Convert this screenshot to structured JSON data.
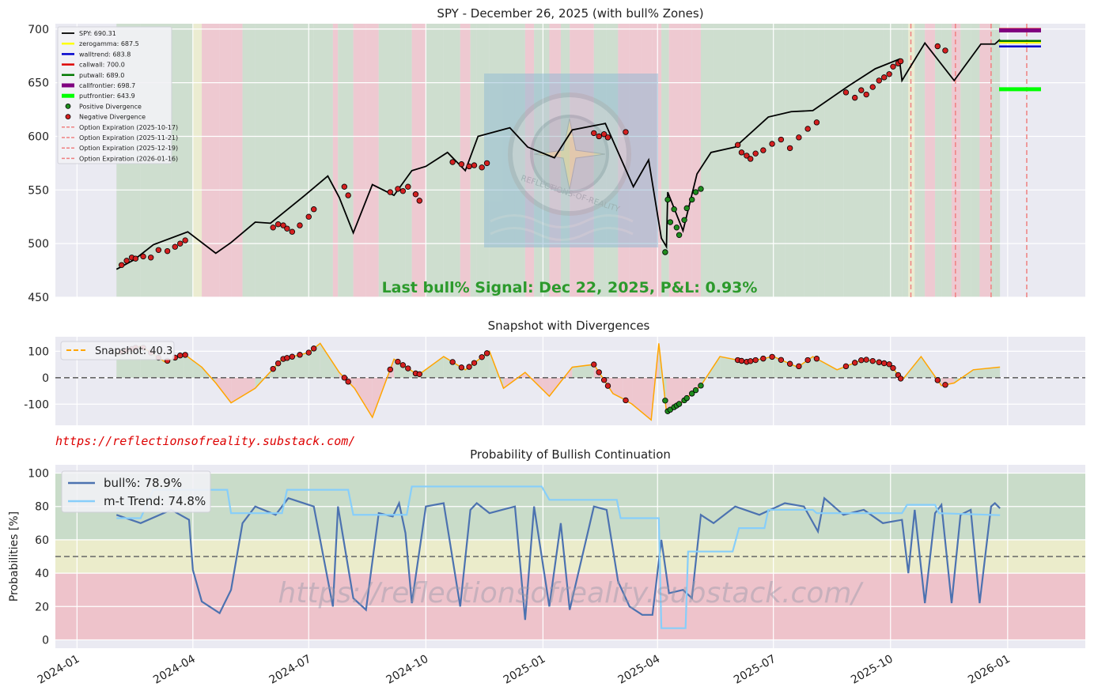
{
  "colors": {
    "axes_bg": "#eaeaf2",
    "grid": "#ffffff",
    "bull_zone": "#c9dcc9",
    "neutral_zone": "#ebeccb",
    "bear_zone": "#eec3cb",
    "spy_line": "#000000",
    "snapshot_line": "#ffa500",
    "bull_line": "#4c72b0",
    "trend_line": "#87cefa",
    "signal_text": "#2c9a2c",
    "url_text": "#dd0000",
    "expiry_line": "#f08080"
  },
  "chart_data": [
    {
      "type": "line",
      "title": "SPY - December 26, 2025 (with bull% Zones)",
      "ylim": [
        450,
        705
      ],
      "yticks": [
        450,
        500,
        550,
        600,
        650,
        700
      ],
      "xlim": [
        "2023-12-15",
        "2026-03-03"
      ],
      "series": [
        {
          "name": "SPY",
          "color": "#000000",
          "x": [
            "2024-02-01",
            "2024-02-15",
            "2024-03-01",
            "2024-03-28",
            "2024-04-19",
            "2024-05-01",
            "2024-05-20",
            "2024-06-01",
            "2024-06-28",
            "2024-07-16",
            "2024-07-25",
            "2024-08-05",
            "2024-08-20",
            "2024-09-06",
            "2024-09-20",
            "2024-10-01",
            "2024-10-18",
            "2024-11-01",
            "2024-11-11",
            "2024-12-06",
            "2024-12-20",
            "2025-01-10",
            "2025-01-24",
            "2025-02-19",
            "2025-03-13",
            "2025-03-25",
            "2025-04-04",
            "2025-04-08",
            "2025-04-09",
            "2025-04-21",
            "2025-05-02",
            "2025-05-13",
            "2025-06-01",
            "2025-06-27",
            "2025-07-15",
            "2025-08-01",
            "2025-08-29",
            "2025-09-19",
            "2025-10-08",
            "2025-10-10",
            "2025-10-28",
            "2025-11-20",
            "2025-12-11",
            "2025-12-22",
            "2025-12-26"
          ],
          "y": [
            476,
            485,
            499,
            511,
            491,
            501,
            520,
            519,
            545,
            563,
            543,
            510,
            555,
            545,
            568,
            572,
            585,
            568,
            600,
            608,
            590,
            580,
            606,
            612,
            553,
            578,
            505,
            497,
            548,
            512,
            565,
            585,
            590,
            618,
            623,
            624,
            647,
            663,
            672,
            652,
            687,
            652,
            686,
            686,
            690.3
          ]
        }
      ],
      "horizontal_levels": [
        {
          "name": "zerogamma",
          "value": 687.5,
          "color": "#ffff00"
        },
        {
          "name": "walltrend",
          "value": 683.8,
          "color": "#0000cc"
        },
        {
          "name": "callwall",
          "value": 700.0,
          "color": "#dd0000"
        },
        {
          "name": "putwall",
          "value": 689.0,
          "color": "#007700"
        },
        {
          "name": "callfrontier",
          "value": 698.7,
          "color": "#800080"
        },
        {
          "name": "putfrontier",
          "value": 643.9,
          "color": "#00ff00"
        }
      ],
      "option_expirations": [
        "2025-10-17",
        "2025-11-21",
        "2025-12-19",
        "2026-01-16"
      ],
      "negative_divergence": [
        [
          "2024-02-05",
          480
        ],
        [
          "2024-02-09",
          484
        ],
        [
          "2024-02-13",
          487
        ],
        [
          "2024-02-16",
          486
        ],
        [
          "2024-02-22",
          488
        ],
        [
          "2024-02-28",
          487
        ],
        [
          "2024-03-05",
          494
        ],
        [
          "2024-03-12",
          493
        ],
        [
          "2024-03-18",
          497
        ],
        [
          "2024-03-22",
          500
        ],
        [
          "2024-03-26",
          503
        ],
        [
          "2024-06-03",
          515
        ],
        [
          "2024-06-07",
          518
        ],
        [
          "2024-06-11",
          517
        ],
        [
          "2024-06-14",
          514
        ],
        [
          "2024-06-18",
          511
        ],
        [
          "2024-06-24",
          517
        ],
        [
          "2024-07-01",
          525
        ],
        [
          "2024-07-05",
          532
        ],
        [
          "2024-07-29",
          553
        ],
        [
          "2024-08-01",
          545
        ],
        [
          "2024-09-03",
          548
        ],
        [
          "2024-09-09",
          551
        ],
        [
          "2024-09-13",
          549
        ],
        [
          "2024-09-17",
          553
        ],
        [
          "2024-09-23",
          546
        ],
        [
          "2024-09-26",
          540
        ],
        [
          "2024-10-22",
          576
        ],
        [
          "2024-10-29",
          574
        ],
        [
          "2024-11-04",
          572
        ],
        [
          "2024-11-08",
          573
        ],
        [
          "2024-11-14",
          571
        ],
        [
          "2024-11-18",
          575
        ],
        [
          "2025-02-10",
          603
        ],
        [
          "2025-02-14",
          600
        ],
        [
          "2025-02-18",
          602
        ],
        [
          "2025-02-21",
          599
        ],
        [
          "2025-03-07",
          604
        ],
        [
          "2025-06-03",
          592
        ],
        [
          "2025-06-06",
          585
        ],
        [
          "2025-06-10",
          582
        ],
        [
          "2025-06-13",
          579
        ],
        [
          "2025-06-17",
          584
        ],
        [
          "2025-06-23",
          587
        ],
        [
          "2025-06-30",
          593
        ],
        [
          "2025-07-07",
          597
        ],
        [
          "2025-07-14",
          589
        ],
        [
          "2025-07-21",
          599
        ],
        [
          "2025-07-28",
          607
        ],
        [
          "2025-08-04",
          613
        ],
        [
          "2025-08-27",
          641
        ],
        [
          "2025-09-03",
          636
        ],
        [
          "2025-09-08",
          643
        ],
        [
          "2025-09-12",
          639
        ],
        [
          "2025-09-17",
          646
        ],
        [
          "2025-09-22",
          652
        ],
        [
          "2025-09-26",
          655
        ],
        [
          "2025-09-30",
          658
        ],
        [
          "2025-10-03",
          665
        ],
        [
          "2025-10-07",
          668
        ],
        [
          "2025-10-09",
          670
        ],
        [
          "2025-11-07",
          684
        ],
        [
          "2025-11-13",
          680
        ]
      ],
      "positive_divergence": [
        [
          "2025-04-07",
          492
        ],
        [
          "2025-04-09",
          541
        ],
        [
          "2025-04-11",
          520
        ],
        [
          "2025-04-14",
          532
        ],
        [
          "2025-04-16",
          515
        ],
        [
          "2025-04-18",
          508
        ],
        [
          "2025-04-22",
          522
        ],
        [
          "2025-04-24",
          533
        ],
        [
          "2025-04-28",
          541
        ],
        [
          "2025-05-01",
          548
        ],
        [
          "2025-05-05",
          551
        ]
      ],
      "annotation": "Last bull% Signal: Dec 22, 2025, P&L: 0.93%",
      "legend_labels": [
        "SPY:  690.31",
        "zerogamma: 687.5",
        "walltrend: 683.8",
        "callwall: 700.0",
        "putwall: 689.0",
        "callfrontier: 698.7",
        "putfrontier: 643.9",
        "Positive Divergence",
        "Negative Divergence",
        "Option Expiration (2025-10-17)",
        "Option Expiration (2025-11-21)",
        "Option Expiration (2025-12-19)",
        "Option Expiration (2026-01-16)"
      ],
      "legend_placement": "top-left",
      "watermark": "REFLECTIONS-OF-REALITY"
    },
    {
      "type": "area",
      "title": "Snapshot with Divergences",
      "ylim": [
        -180,
        155
      ],
      "yticks": [
        -100,
        0,
        100
      ],
      "series": [
        {
          "name": "Snapshot",
          "color": "#ffa500",
          "x": [
            "2024-02-01",
            "2024-02-20",
            "2024-03-10",
            "2024-03-25",
            "2024-04-08",
            "2024-04-19",
            "2024-05-01",
            "2024-05-20",
            "2024-06-10",
            "2024-07-01",
            "2024-07-10",
            "2024-07-25",
            "2024-08-06",
            "2024-08-20",
            "2024-09-06",
            "2024-09-25",
            "2024-10-15",
            "2024-11-01",
            "2024-11-20",
            "2024-12-01",
            "2024-12-18",
            "2025-01-06",
            "2025-01-24",
            "2025-02-10",
            "2025-02-25",
            "2025-03-05",
            "2025-03-12",
            "2025-03-27",
            "2025-04-02",
            "2025-04-08",
            "2025-04-21",
            "2025-05-05",
            "2025-05-20",
            "2025-06-10",
            "2025-07-01",
            "2025-07-20",
            "2025-08-01",
            "2025-08-20",
            "2025-09-10",
            "2025-10-01",
            "2025-10-10",
            "2025-10-25",
            "2025-11-10",
            "2025-11-20",
            "2025-12-05",
            "2025-12-26"
          ],
          "y": [
            90,
            120,
            60,
            90,
            40,
            -20,
            -95,
            -40,
            70,
            95,
            130,
            20,
            -40,
            -150,
            70,
            10,
            80,
            30,
            100,
            -40,
            20,
            -70,
            40,
            50,
            -60,
            -80,
            -100,
            -160,
            130,
            -130,
            -90,
            -30,
            80,
            60,
            80,
            40,
            80,
            30,
            70,
            50,
            -10,
            80,
            -30,
            -20,
            30,
            40.3
          ]
        }
      ],
      "divergences": "markers at snapshot extremes, red negative / green positive",
      "legend_labels": [
        "Snapshot: 40.3"
      ]
    },
    {
      "type": "line",
      "title": "Probability of Bullish Continuation",
      "ylabel": "Probabilities [%]",
      "ylim": [
        -5,
        105
      ],
      "yticks": [
        0,
        20,
        40,
        60,
        80,
        100
      ],
      "zones": [
        {
          "name": "bear",
          "from": 0,
          "to": 40
        },
        {
          "name": "neutral",
          "from": 40,
          "to": 60
        },
        {
          "name": "bull",
          "from": 60,
          "to": 100
        }
      ],
      "threshold": 50,
      "series": [
        {
          "name": "bull%",
          "color": "#4c72b0",
          "x": [
            "2024-02-01",
            "2024-02-20",
            "2024-03-15",
            "2024-03-29",
            "2024-04-01",
            "2024-04-08",
            "2024-04-22",
            "2024-05-01",
            "2024-05-10",
            "2024-05-20",
            "2024-06-05",
            "2024-06-15",
            "2024-07-05",
            "2024-07-20",
            "2024-07-24",
            "2024-08-05",
            "2024-08-15",
            "2024-08-25",
            "2024-09-05",
            "2024-09-10",
            "2024-09-15",
            "2024-09-20",
            "2024-10-01",
            "2024-10-15",
            "2024-10-28",
            "2024-11-05",
            "2024-11-10",
            "2024-11-20",
            "2024-12-10",
            "2024-12-18",
            "2024-12-25",
            "2025-01-06",
            "2025-01-15",
            "2025-01-22",
            "2025-02-10",
            "2025-02-20",
            "2025-03-01",
            "2025-03-10",
            "2025-03-20",
            "2025-03-28",
            "2025-04-04",
            "2025-04-10",
            "2025-04-21",
            "2025-04-28",
            "2025-05-05",
            "2025-05-15",
            "2025-06-01",
            "2025-06-20",
            "2025-07-10",
            "2025-07-25",
            "2025-08-05",
            "2025-08-10",
            "2025-08-25",
            "2025-09-10",
            "2025-09-25",
            "2025-10-10",
            "2025-10-15",
            "2025-10-20",
            "2025-10-28",
            "2025-11-05",
            "2025-11-10",
            "2025-11-18",
            "2025-11-25",
            "2025-12-03",
            "2025-12-10",
            "2025-12-19",
            "2025-12-22",
            "2025-12-26"
          ],
          "y": [
            75,
            70,
            78,
            72,
            42,
            23,
            16,
            30,
            70,
            80,
            75,
            85,
            80,
            20,
            80,
            25,
            18,
            76,
            74,
            82,
            64,
            22,
            80,
            82,
            20,
            78,
            82,
            76,
            80,
            12,
            80,
            20,
            70,
            18,
            80,
            78,
            35,
            20,
            15,
            15,
            60,
            28,
            30,
            25,
            75,
            70,
            80,
            75,
            82,
            80,
            65,
            85,
            75,
            78,
            70,
            72,
            40,
            78,
            22,
            76,
            81,
            22,
            75,
            78,
            22,
            80,
            82,
            78.9
          ]
        },
        {
          "name": "m-t Trend",
          "color": "#87cefa",
          "x": [
            "2024-02-01",
            "2024-02-20",
            "2024-03-01",
            "2024-04-01",
            "2024-04-28",
            "2024-05-01",
            "2024-06-10",
            "2024-06-14",
            "2024-08-01",
            "2024-08-05",
            "2024-09-16",
            "2024-09-20",
            "2024-12-31",
            "2025-01-06",
            "2025-02-28",
            "2025-03-03",
            "2025-04-02",
            "2025-04-04",
            "2025-04-23",
            "2025-04-25",
            "2025-05-30",
            "2025-06-04",
            "2025-06-24",
            "2025-06-27",
            "2025-08-01",
            "2025-08-04",
            "2025-10-10",
            "2025-10-14",
            "2025-11-05",
            "2025-11-08",
            "2025-12-26"
          ],
          "y": [
            73,
            73,
            90,
            90,
            90,
            76,
            76,
            90,
            90,
            75,
            75,
            92,
            92,
            84,
            84,
            73,
            73,
            7,
            7,
            53,
            53,
            67,
            67,
            78,
            78,
            76,
            76,
            81,
            81,
            76,
            74.8
          ]
        }
      ],
      "legend_labels": [
        "bull%: 78.9%",
        "m-t Trend: 74.8%"
      ],
      "x_tick_labels": [
        "2024-01",
        "2024-04",
        "2024-07",
        "2024-10",
        "2025-01",
        "2025-04",
        "2025-07",
        "2025-10",
        "2026-01"
      ],
      "watermark": "https://reflectionsofreality.substack.com/"
    }
  ],
  "url_label": "https://reflectionsofreality.substack.com/"
}
